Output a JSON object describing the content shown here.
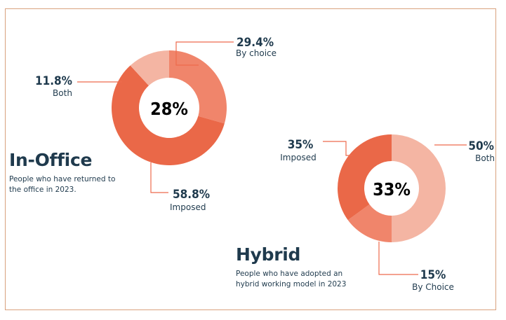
{
  "colors": {
    "frame": "#d9a27e",
    "leader": "#ee6b4d",
    "center_text": "#ee6b4d",
    "text": "#1f3a4d"
  },
  "in_office": {
    "title": "In-Office",
    "description": "People who have returned to\nthe office in 2023.",
    "center_label": "28%"
  },
  "hybrid": {
    "title": "Hybrid",
    "description": "People who have adopted an\nhybrid working model in 2023",
    "center_label": "33%"
  },
  "chart_data": [
    {
      "type": "pie",
      "name": "In-Office",
      "center_label": "28%",
      "slices": [
        {
          "label": "By choice",
          "value_label": "29.4%",
          "value": 29.4,
          "color": "#f0856b"
        },
        {
          "label": "Imposed",
          "value_label": "58.8%",
          "value": 58.8,
          "color": "#ea6848"
        },
        {
          "label": "Both",
          "value_label": "11.8%",
          "value": 11.8,
          "color": "#f4b5a3"
        }
      ]
    },
    {
      "type": "pie",
      "name": "Hybrid",
      "center_label": "33%",
      "slices": [
        {
          "label": "Both",
          "value_label": "50%",
          "value": 50,
          "color": "#f4b5a3"
        },
        {
          "label": "By Choice",
          "value_label": "15%",
          "value": 15,
          "color": "#f0856b"
        },
        {
          "label": "Imposed",
          "value_label": "35%",
          "value": 35,
          "color": "#ea6848"
        }
      ]
    }
  ]
}
